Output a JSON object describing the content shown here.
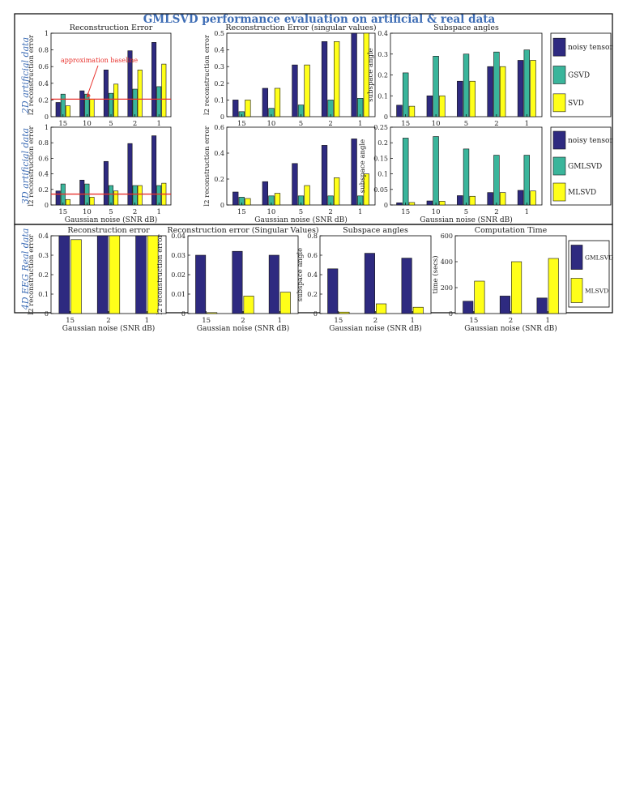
{
  "figure_title": "GMLSVD performance evaluation on artificial & real data",
  "row_labels": [
    "2D artificial data",
    "3D artificial data",
    "4D EEG Real data"
  ],
  "colors": {
    "dark": "#2E2A80",
    "teal": "#3AB59B",
    "yellow": "#FFFF19",
    "baseline": "#E8312C",
    "title_blue": "#3E6DB5"
  },
  "legends": [
    {
      "items": [
        {
          "label": "noisy tensor",
          "color": "#2E2A80"
        },
        {
          "label": "GSVD",
          "color": "#3AB59B"
        },
        {
          "label": "SVD",
          "color": "#FFFF19"
        }
      ]
    },
    {
      "items": [
        {
          "label": "noisy tensor",
          "color": "#2E2A80"
        },
        {
          "label": "GMLSVD",
          "color": "#3AB59B"
        },
        {
          "label": "MLSVD",
          "color": "#FFFF19"
        }
      ]
    },
    {
      "items": [
        {
          "label": "GMLSVD",
          "color": "#2E2A80"
        },
        {
          "label": "MLSVD",
          "color": "#FFFF19"
        }
      ]
    }
  ],
  "chart_data": [
    {
      "type": "bar",
      "title": "Reconstruction Error",
      "xlabel": "",
      "ylabel": "l2 reconstruction error",
      "categories": [
        "15",
        "10",
        "5",
        "2",
        "1"
      ],
      "ylim": [
        0,
        1
      ],
      "yticks": [
        0,
        0.2,
        0.4,
        0.6,
        0.8,
        1
      ],
      "ytick_labels": [
        "0",
        "0.2",
        "0.4",
        "0.6",
        "0.8",
        "1"
      ],
      "series": [
        {
          "name": "noisy tensor",
          "values": [
            0.17,
            0.31,
            0.56,
            0.79,
            0.89
          ]
        },
        {
          "name": "GSVD",
          "values": [
            0.27,
            0.27,
            0.28,
            0.33,
            0.36
          ]
        },
        {
          "name": "SVD",
          "values": [
            0.13,
            0.21,
            0.39,
            0.56,
            0.63
          ]
        }
      ],
      "baseline": {
        "value": 0.21,
        "label": "approximation baseline"
      }
    },
    {
      "type": "bar",
      "title": "Reconstruction Error (singular values)",
      "xlabel": "",
      "ylabel": "l2 reconstruction error",
      "categories": [
        "15",
        "10",
        "5",
        "2",
        "1"
      ],
      "ylim": [
        0,
        0.5
      ],
      "yticks": [
        0,
        0.1,
        0.2,
        0.3,
        0.4,
        0.5
      ],
      "ytick_labels": [
        "0",
        "0.1",
        "0.2",
        "0.3",
        "0.4",
        "0.5"
      ],
      "series": [
        {
          "name": "noisy tensor",
          "values": [
            0.1,
            0.17,
            0.31,
            0.45,
            0.5
          ]
        },
        {
          "name": "GSVD",
          "values": [
            0.03,
            0.05,
            0.07,
            0.1,
            0.11
          ]
        },
        {
          "name": "SVD",
          "values": [
            0.1,
            0.17,
            0.31,
            0.45,
            0.5
          ]
        }
      ]
    },
    {
      "type": "bar",
      "title": "Subspace angles",
      "xlabel": "",
      "ylabel": "subspace angle",
      "categories": [
        "15",
        "10",
        "5",
        "2",
        "1"
      ],
      "ylim": [
        0,
        0.4
      ],
      "yticks": [
        0,
        0.1,
        0.2,
        0.3,
        0.4
      ],
      "ytick_labels": [
        "0",
        "0.1",
        "0.2",
        "0.3",
        "0.4"
      ],
      "series": [
        {
          "name": "noisy tensor",
          "values": [
            0.055,
            0.1,
            0.17,
            0.24,
            0.27
          ]
        },
        {
          "name": "GSVD",
          "values": [
            0.21,
            0.29,
            0.3,
            0.31,
            0.32
          ]
        },
        {
          "name": "SVD",
          "values": [
            0.05,
            0.1,
            0.17,
            0.24,
            0.27
          ]
        }
      ]
    },
    {
      "type": "bar",
      "title": "",
      "xlabel": "Gaussian noise (SNR dB)",
      "ylabel": "l2 reconstruction error",
      "categories": [
        "15",
        "10",
        "5",
        "2",
        "1"
      ],
      "ylim": [
        0,
        1
      ],
      "yticks": [
        0,
        0.2,
        0.4,
        0.6,
        0.8,
        1
      ],
      "ytick_labels": [
        "0",
        "0.2",
        "0.4",
        "0.6",
        "0.8",
        "1"
      ],
      "series": [
        {
          "name": "noisy tensor",
          "values": [
            0.18,
            0.32,
            0.56,
            0.79,
            0.89
          ]
        },
        {
          "name": "GMLSVD",
          "values": [
            0.27,
            0.27,
            0.25,
            0.25,
            0.25
          ]
        },
        {
          "name": "MLSVD",
          "values": [
            0.07,
            0.1,
            0.18,
            0.25,
            0.28
          ]
        }
      ],
      "baseline": {
        "value": 0.14,
        "label": ""
      }
    },
    {
      "type": "bar",
      "title": "",
      "xlabel": "Gaussian noise (SNR dB)",
      "ylabel": "l2 reconstruction error",
      "categories": [
        "15",
        "10",
        "5",
        "2",
        "1"
      ],
      "ylim": [
        0,
        0.6
      ],
      "yticks": [
        0,
        0.2,
        0.4,
        0.6
      ],
      "ytick_labels": [
        "0",
        "0.2",
        "0.4",
        "0.6"
      ],
      "series": [
        {
          "name": "noisy tensor",
          "values": [
            0.1,
            0.18,
            0.32,
            0.46,
            0.51
          ]
        },
        {
          "name": "GMLSVD",
          "values": [
            0.06,
            0.07,
            0.07,
            0.07,
            0.07
          ]
        },
        {
          "name": "MLSVD",
          "values": [
            0.05,
            0.09,
            0.15,
            0.21,
            0.24
          ]
        }
      ]
    },
    {
      "type": "bar",
      "title": "",
      "xlabel": "Gaussian noise (SNR dB)",
      "ylabel": "subspace angle",
      "categories": [
        "15",
        "10",
        "5",
        "2",
        "1"
      ],
      "ylim": [
        0,
        0.25
      ],
      "yticks": [
        0,
        0.05,
        0.1,
        0.15,
        0.2,
        0.25
      ],
      "ytick_labels": [
        "0",
        "0.05",
        "0.1",
        "0.15",
        "0.2",
        "0.25"
      ],
      "series": [
        {
          "name": "noisy tensor",
          "values": [
            0.007,
            0.013,
            0.03,
            0.04,
            0.047
          ]
        },
        {
          "name": "GMLSVD",
          "values": [
            0.215,
            0.22,
            0.18,
            0.16,
            0.16
          ]
        },
        {
          "name": "MLSVD",
          "values": [
            0.008,
            0.012,
            0.028,
            0.04,
            0.045
          ]
        }
      ]
    },
    {
      "type": "bar",
      "title": "Reconstruction error",
      "xlabel": "Gaussian noise (SNR dB)",
      "ylabel": "l2 reconstruction error",
      "categories": [
        "15",
        "2",
        "1"
      ],
      "ylim": [
        0,
        0.4
      ],
      "yticks": [
        0,
        0.1,
        0.2,
        0.3,
        0.4
      ],
      "ytick_labels": [
        "0",
        "0.1",
        "0.2",
        "0.3",
        "0.4"
      ],
      "series": [
        {
          "name": "GMLSVD",
          "values": [
            0.4,
            0.4,
            0.4
          ]
        },
        {
          "name": "MLSVD",
          "values": [
            0.38,
            0.4,
            0.4
          ]
        }
      ]
    },
    {
      "type": "bar",
      "title": "Reconstruction error (Singular Values)",
      "xlabel": "Gaussian noise (SNR dB)",
      "ylabel": "l2 reconstruction error",
      "categories": [
        "15",
        "2",
        "1"
      ],
      "ylim": [
        0,
        0.04
      ],
      "yticks": [
        0,
        0.01,
        0.02,
        0.03,
        0.04
      ],
      "ytick_labels": [
        "0",
        "0.01",
        "0.02",
        "0.03",
        "0.04"
      ],
      "series": [
        {
          "name": "GMLSVD",
          "values": [
            0.03,
            0.032,
            0.03
          ]
        },
        {
          "name": "MLSVD",
          "values": [
            0.0005,
            0.009,
            0.011
          ]
        }
      ]
    },
    {
      "type": "bar",
      "title": "Subspace angles",
      "xlabel": "Gaussian noise (SNR dB)",
      "ylabel": "subspace angle",
      "categories": [
        "15",
        "2",
        "1"
      ],
      "ylim": [
        0,
        0.8
      ],
      "yticks": [
        0,
        0.2,
        0.4,
        0.6,
        0.8
      ],
      "ytick_labels": [
        "0",
        "0.2",
        "0.4",
        "0.6",
        "0.8"
      ],
      "series": [
        {
          "name": "GMLSVD",
          "values": [
            0.46,
            0.62,
            0.57
          ]
        },
        {
          "name": "MLSVD",
          "values": [
            0.015,
            0.1,
            0.065
          ]
        }
      ]
    },
    {
      "type": "bar",
      "title": "Computation Time",
      "xlabel": "Gaussian noise (SNR dB)",
      "ylabel": "time (secs)",
      "categories": [
        "15",
        "2",
        "1"
      ],
      "ylim": [
        0,
        600
      ],
      "yticks": [
        0,
        200,
        400,
        600
      ],
      "ytick_labels": [
        "0",
        "200",
        "400",
        "600"
      ],
      "series": [
        {
          "name": "GMLSVD",
          "values": [
            95,
            135,
            120
          ]
        },
        {
          "name": "MLSVD",
          "values": [
            250,
            400,
            425
          ]
        }
      ]
    }
  ]
}
